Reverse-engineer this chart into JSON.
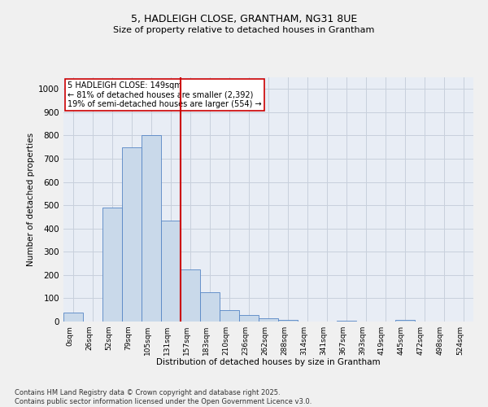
{
  "title": "5, HADLEIGH CLOSE, GRANTHAM, NG31 8UE",
  "subtitle": "Size of property relative to detached houses in Grantham",
  "xlabel": "Distribution of detached houses by size in Grantham",
  "ylabel": "Number of detached properties",
  "bin_labels": [
    "0sqm",
    "26sqm",
    "52sqm",
    "79sqm",
    "105sqm",
    "131sqm",
    "157sqm",
    "183sqm",
    "210sqm",
    "236sqm",
    "262sqm",
    "288sqm",
    "314sqm",
    "341sqm",
    "367sqm",
    "393sqm",
    "419sqm",
    "445sqm",
    "472sqm",
    "498sqm",
    "524sqm"
  ],
  "bar_heights": [
    40,
    0,
    490,
    750,
    800,
    435,
    225,
    125,
    50,
    27,
    15,
    7,
    0,
    0,
    5,
    0,
    0,
    7,
    0,
    0,
    0
  ],
  "bar_color": "#c9d9ea",
  "bar_edge_color": "#5585c5",
  "property_line_color": "#cc0000",
  "annotation_text": "5 HADLEIGH CLOSE: 149sqm\n← 81% of detached houses are smaller (2,392)\n19% of semi-detached houses are larger (554) →",
  "annotation_box_color": "#cc0000",
  "ylim": [
    0,
    1050
  ],
  "yticks": [
    0,
    100,
    200,
    300,
    400,
    500,
    600,
    700,
    800,
    900,
    1000
  ],
  "grid_color": "#c8d0dc",
  "bg_color": "#e8edf5",
  "footer": "Contains HM Land Registry data © Crown copyright and database right 2025.\nContains public sector information licensed under the Open Government Licence v3.0.",
  "fig_bg": "#f0f0f0",
  "title_fontsize": 9,
  "subtitle_fontsize": 8
}
